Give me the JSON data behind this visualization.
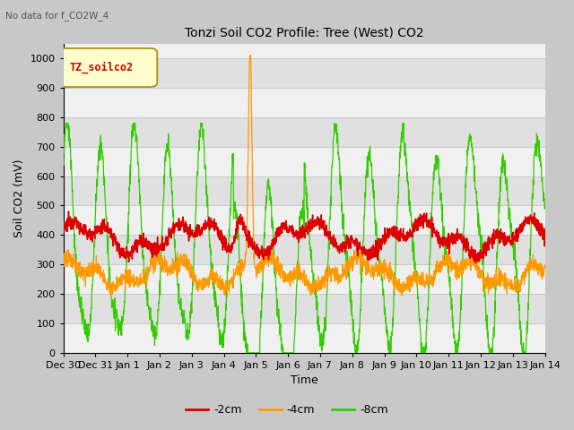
{
  "title": "Tonzi Soil CO2 Profile: Tree (West) CO2",
  "no_data_text": "No data for f_CO2W_4",
  "xlabel": "Time",
  "ylabel": "Soil CO2 (mV)",
  "ylim": [
    0,
    1050
  ],
  "yticks": [
    0,
    100,
    200,
    300,
    400,
    500,
    600,
    700,
    800,
    900,
    1000
  ],
  "legend_label": "TZ_soilco2",
  "line_labels": [
    "-2cm",
    "-4cm",
    "-8cm"
  ],
  "line_colors": [
    "#dd0000",
    "#ff9900",
    "#33cc00"
  ],
  "fig_facecolor": "#c8c8c8",
  "ax_facecolor": "#ffffff",
  "band_colors": [
    "#f0f0f0",
    "#e0e0e0"
  ],
  "x_tick_labels": [
    "Dec 30",
    "Dec 31",
    "Jan 1",
    "Jan 2",
    "Jan 3",
    "Jan 4",
    "Jan 5",
    "Jan 6",
    "Jan 7",
    "Jan 8",
    "Jan 9",
    "Jan 10",
    "Jan 11",
    "Jan 12",
    "Jan 13",
    "Jan 14"
  ]
}
